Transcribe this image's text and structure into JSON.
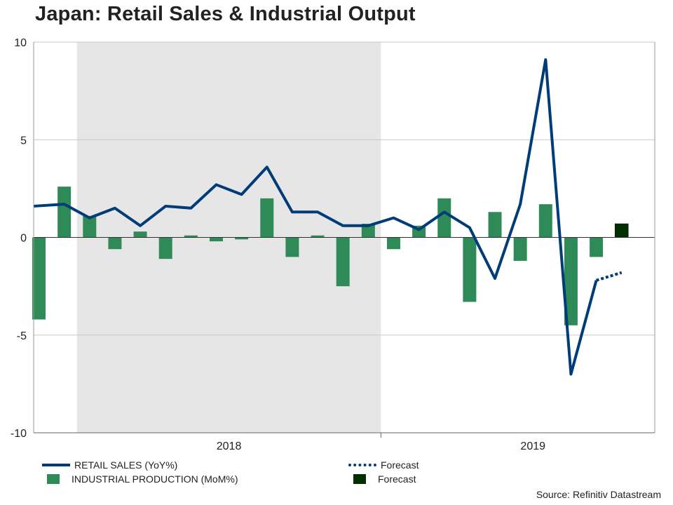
{
  "title": "Japan: Retail Sales & Industrial Output",
  "source": "Source: Refinitiv Datastream",
  "colors": {
    "retail_line": "#003C78",
    "industrial_bar": "#2E8B57",
    "forecast_bar": "#003000",
    "shade": "#E6E6E6",
    "grid": "#C8C8C8"
  },
  "legend": [
    {
      "label": "RETAIL SALES (YoY%)",
      "swatch": "line"
    },
    {
      "label": "INDUSTRIAL PRODUCTION (MoM%)",
      "swatch": "bar"
    },
    {
      "label": "Forecast",
      "swatch": "dotted-line"
    },
    {
      "label": "Forecast",
      "swatch": "dark-bar"
    }
  ],
  "chart_data": {
    "type": "bar+line",
    "ylim": [
      -10,
      10
    ],
    "yticks": [
      "10",
      "5",
      "0",
      "-5",
      "-10"
    ],
    "year_labels": [
      "2018",
      "2019"
    ],
    "grid": true,
    "legend_position": "bottom",
    "shaded_regions": [
      "2018",
      "after November 2019"
    ],
    "x": [
      "2017-11",
      "2017-12",
      "2018-01",
      "2018-02",
      "2018-03",
      "2018-04",
      "2018-05",
      "2018-06",
      "2018-07",
      "2018-08",
      "2018-09",
      "2018-10",
      "2018-11",
      "2018-12",
      "2019-01",
      "2019-02",
      "2019-03",
      "2019-04",
      "2019-05",
      "2019-06",
      "2019-07",
      "2019-08",
      "2019-09",
      "2019-10",
      "2019-11",
      "2019-12"
    ],
    "series": [
      {
        "name": "RETAIL SALES (YoY%)",
        "type": "line",
        "values": [
          1.6,
          1.7,
          1.0,
          1.5,
          0.6,
          1.6,
          1.5,
          2.7,
          2.2,
          3.6,
          1.3,
          1.3,
          0.6,
          0.6,
          1.0,
          0.4,
          1.3,
          0.5,
          -2.1,
          1.7,
          9.1,
          -7.0,
          -2.2,
          null,
          null,
          null
        ]
      },
      {
        "name": "Forecast",
        "type": "dotted-line",
        "values": [
          null,
          null,
          null,
          null,
          null,
          null,
          null,
          null,
          null,
          null,
          null,
          null,
          null,
          null,
          null,
          null,
          null,
          null,
          null,
          null,
          null,
          null,
          -2.2,
          -1.8,
          null,
          null
        ]
      },
      {
        "name": "INDUSTRIAL PRODUCTION (MoM%)",
        "type": "bar",
        "values": [
          -4.2,
          2.6,
          1.1,
          -0.6,
          0.3,
          -1.1,
          0.1,
          -0.2,
          -0.1,
          2.0,
          -1.0,
          0.1,
          -2.5,
          0.7,
          -0.6,
          0.6,
          2.0,
          -3.3,
          1.3,
          -1.2,
          1.7,
          -4.5,
          -1.0,
          null,
          null,
          null
        ]
      },
      {
        "name": "Forecast",
        "type": "dark-bar",
        "values": [
          null,
          null,
          null,
          null,
          null,
          null,
          null,
          null,
          null,
          null,
          null,
          null,
          null,
          null,
          null,
          null,
          null,
          null,
          null,
          null,
          null,
          null,
          null,
          0.7,
          null,
          null
        ]
      }
    ]
  }
}
